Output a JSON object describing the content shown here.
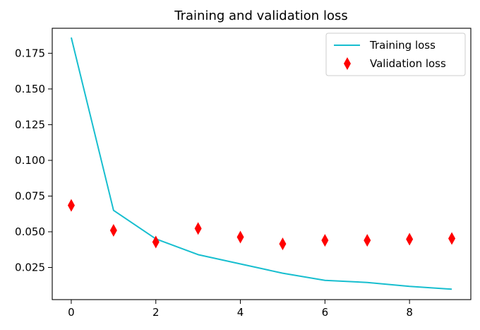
{
  "chart_data": {
    "type": "line",
    "title": "Training and validation loss",
    "xlabel": "",
    "ylabel": "",
    "xlim": [
      -0.45,
      9.45
    ],
    "ylim": [
      0.0025,
      0.1925
    ],
    "xticks": [
      0,
      2,
      4,
      6,
      8
    ],
    "xtick_labels": [
      "0",
      "2",
      "4",
      "6",
      "8"
    ],
    "yticks": [
      0.025,
      0.05,
      0.075,
      0.1,
      0.125,
      0.15,
      0.175
    ],
    "ytick_labels": [
      "0.025",
      "0.050",
      "0.075",
      "0.100",
      "0.125",
      "0.150",
      "0.175"
    ],
    "grid": false,
    "legend_position": "top-right",
    "series": [
      {
        "name": "Training loss",
        "style": "line",
        "color": "#17becf",
        "x": [
          0,
          1,
          2,
          3,
          4,
          5,
          6,
          7,
          8,
          9
        ],
        "values": [
          0.186,
          0.065,
          0.045,
          0.034,
          0.0275,
          0.021,
          0.016,
          0.0145,
          0.0118,
          0.0098
        ]
      },
      {
        "name": "Validation loss",
        "style": "marker",
        "marker": "diamond",
        "color": "#ff0000",
        "x": [
          0,
          1,
          2,
          3,
          4,
          5,
          6,
          7,
          8,
          9
        ],
        "values": [
          0.0685,
          0.051,
          0.0428,
          0.0523,
          0.0463,
          0.0415,
          0.044,
          0.044,
          0.0448,
          0.0453
        ]
      }
    ]
  }
}
